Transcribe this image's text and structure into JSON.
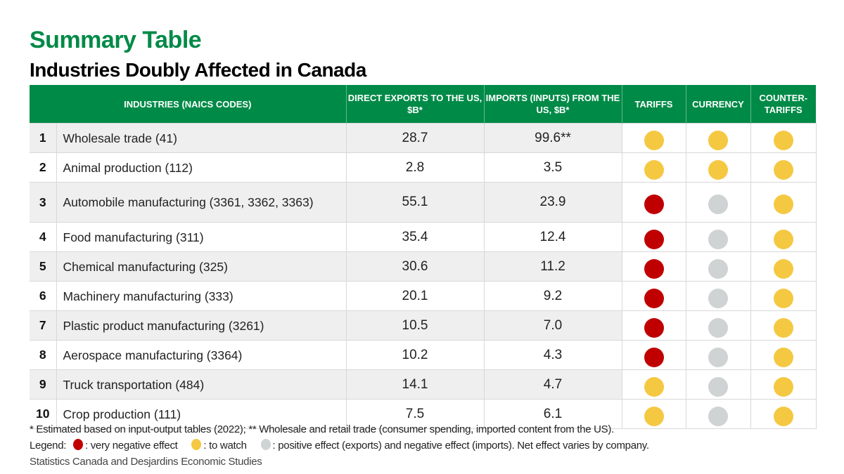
{
  "title": "Summary Table",
  "subtitle": "Industries Doubly Affected in Canada",
  "colors": {
    "header": "#008a47",
    "red": "#c00000",
    "yellow": "#f5c842",
    "gray": "#cfd3d3"
  },
  "columns": [
    "INDUSTRIES (NAICS CODES)",
    "DIRECT EXPORTS TO THE US, $B*",
    "IMPORTS (INPUTS) FROM THE US, $B*",
    "TARIFFS",
    "CURRENCY",
    "COUNTER-TARIFFS"
  ],
  "rows": [
    {
      "rank": "1",
      "industry": "Wholesale trade (41)",
      "exports": "28.7",
      "imports": "99.6**",
      "tariffs": "yellow",
      "currency": "yellow",
      "counter_tariffs": "yellow"
    },
    {
      "rank": "2",
      "industry": "Animal production (112)",
      "exports": "2.8",
      "imports": "3.5",
      "tariffs": "yellow",
      "currency": "yellow",
      "counter_tariffs": "yellow"
    },
    {
      "rank": "3",
      "industry": "Automobile manufacturing (3361, 3362, 3363)",
      "exports": "55.1",
      "imports": "23.9",
      "tariffs": "red",
      "currency": "gray",
      "counter_tariffs": "yellow"
    },
    {
      "rank": "4",
      "industry": "Food manufacturing (311)",
      "exports": "35.4",
      "imports": "12.4",
      "tariffs": "red",
      "currency": "gray",
      "counter_tariffs": "yellow"
    },
    {
      "rank": "5",
      "industry": "Chemical manufacturing (325)",
      "exports": "30.6",
      "imports": "11.2",
      "tariffs": "red",
      "currency": "gray",
      "counter_tariffs": "yellow"
    },
    {
      "rank": "6",
      "industry": "Machinery manufacturing (333)",
      "exports": "20.1",
      "imports": "9.2",
      "tariffs": "red",
      "currency": "gray",
      "counter_tariffs": "yellow"
    },
    {
      "rank": "7",
      "industry": "Plastic product manufacturing (3261)",
      "exports": "10.5",
      "imports": "7.0",
      "tariffs": "red",
      "currency": "gray",
      "counter_tariffs": "yellow"
    },
    {
      "rank": "8",
      "industry": "Aerospace manufacturing (3364)",
      "exports": "10.2",
      "imports": "4.3",
      "tariffs": "red",
      "currency": "gray",
      "counter_tariffs": "yellow"
    },
    {
      "rank": "9",
      "industry": "Truck transportation (484)",
      "exports": "14.1",
      "imports": "4.7",
      "tariffs": "yellow",
      "currency": "gray",
      "counter_tariffs": "yellow"
    },
    {
      "rank": "10",
      "industry": "Crop production (111)",
      "exports": "7.5",
      "imports": "6.1",
      "tariffs": "yellow",
      "currency": "gray",
      "counter_tariffs": "yellow"
    }
  ],
  "footnote": "* Estimated based on input-output tables (2022); ** Wholesale and retail trade (consumer spending, imported content from the US).",
  "legend": {
    "label": "Legend:",
    "red": ": very negative effect",
    "yellow": ": to watch",
    "gray": ": positive effect (exports) and negative effect (imports). Net effect varies by company."
  },
  "source": "Statistics Canada and Desjardins Economic Studies"
}
